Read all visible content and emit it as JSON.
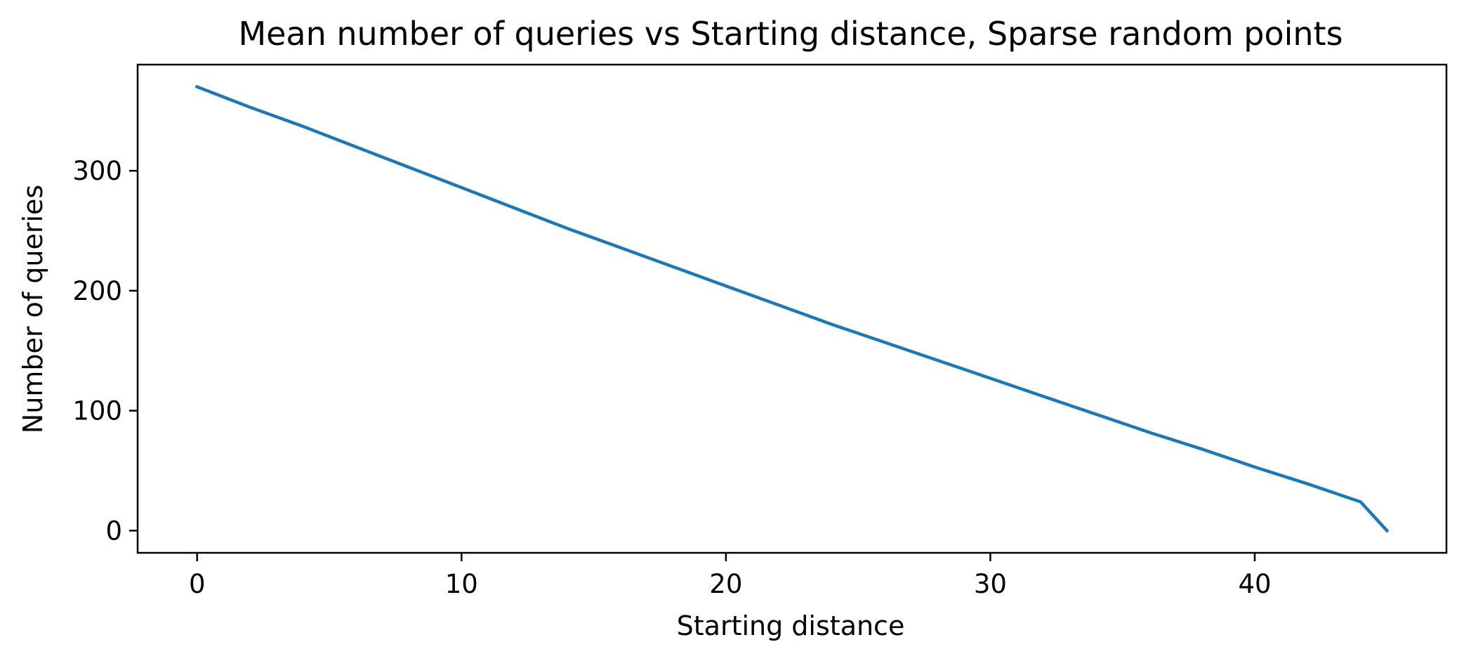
{
  "chart_data": {
    "type": "line",
    "title": "Mean number of queries vs Starting distance, Sparse random points",
    "xlabel": "Starting distance",
    "ylabel": "Number of queries",
    "xlim": [
      -2.25,
      47.25
    ],
    "ylim": [
      -18.5,
      388.5
    ],
    "xticks": [
      0,
      10,
      20,
      30,
      40
    ],
    "yticks": [
      0,
      100,
      200,
      300
    ],
    "grid": false,
    "legend": "none",
    "colors": {
      "line": "#1f77b4",
      "axes": "#000000",
      "background": "#ffffff"
    },
    "series": [
      {
        "x": [
          0,
          2,
          4,
          6,
          8,
          10,
          12,
          14,
          16,
          18,
          20,
          22,
          24,
          26,
          28,
          30,
          32,
          34,
          36,
          38,
          40,
          42,
          44,
          45
        ],
        "values": [
          370,
          353,
          337,
          320,
          303,
          286,
          269,
          252,
          236,
          220,
          204,
          188,
          172,
          157,
          142,
          127,
          112,
          97,
          82,
          68,
          53,
          39,
          24,
          0
        ]
      }
    ]
  }
}
